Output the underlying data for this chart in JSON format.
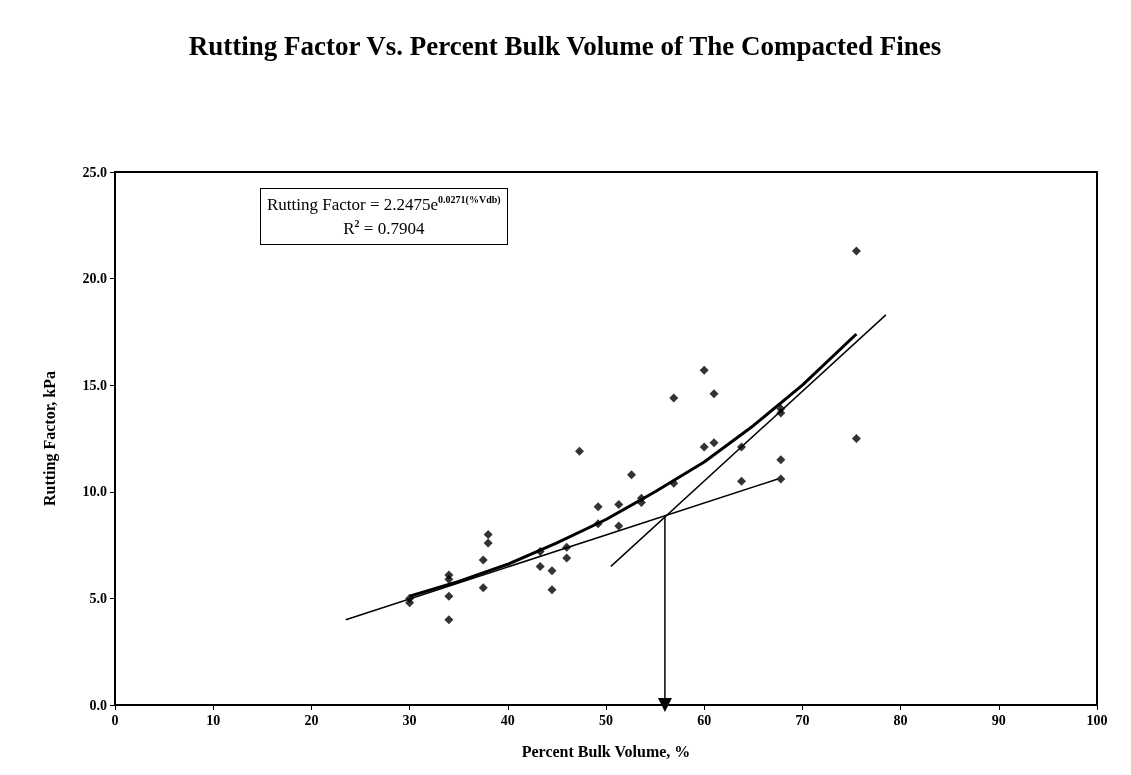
{
  "chart_data": {
    "type": "scatter",
    "title": "Rutting Factor Vs. Percent Bulk Volume of The Compacted Fines",
    "xlabel": "Percent Bulk Volume, %",
    "ylabel": "Rutting Factor, kPa",
    "annotations": [
      "Rutting Factor = 2.2475e$^{0.0271(%Vdb)}$",
      "R$^{2}$ = 0.7904"
    ],
    "xlim": [
      0,
      100
    ],
    "xticks": [
      0,
      10,
      20,
      30,
      40,
      50,
      60,
      70,
      80,
      90,
      100
    ],
    "ylim": [
      0,
      25
    ],
    "yticks": [
      {
        "value": 0,
        "label": "0.0"
      },
      {
        "value": 5,
        "label": "5.0"
      },
      {
        "value": 10,
        "label": "10.0"
      },
      {
        "value": 15,
        "label": "15.0"
      },
      {
        "value": 20,
        "label": "20.0"
      },
      {
        "value": 25,
        "label": "25.0"
      }
    ],
    "grid": false,
    "marker": "diamond",
    "series": [
      {
        "color": "#000000",
        "x": [
          30,
          30,
          34,
          34,
          34,
          34,
          37.5,
          37.5,
          38,
          38,
          43.3,
          43.3,
          44.5,
          44.5,
          46,
          46,
          47.3,
          49.2,
          49.2,
          51.3,
          51.3,
          52.6,
          53.6,
          53.6,
          56.9,
          56.9,
          60,
          60,
          61,
          61,
          63.8,
          63.8,
          67.8,
          67.8,
          67.8,
          67.8,
          75.5,
          75.5
        ],
        "values": [
          5.0,
          4.8,
          6.1,
          5.9,
          5.1,
          4.0,
          6.8,
          5.5,
          8.0,
          7.6,
          7.2,
          6.5,
          6.3,
          5.4,
          7.4,
          6.9,
          11.9,
          9.3,
          8.5,
          9.4,
          8.4,
          10.8,
          9.7,
          9.5,
          14.4,
          10.4,
          15.7,
          12.1,
          14.6,
          12.3,
          12.1,
          10.5,
          13.9,
          13.7,
          11.5,
          10.6,
          21.3,
          12.5
        ]
      },
      {
        "type": "line",
        "color": "#000000",
        "marker": "none",
        "x": [
          30,
          35,
          40,
          45,
          50,
          55,
          60,
          65,
          70,
          75.5
        ],
        "values": [
          5.1,
          5.8,
          6.6,
          7.6,
          8.7,
          10.0,
          11.4,
          13.1,
          15.0,
          17.4
        ]
      },
      {
        "type": "line",
        "color": "#000000",
        "marker": "none",
        "x": [
          23.5,
          67.5
        ],
        "values": [
          4.0,
          10.6
        ]
      },
      {
        "type": "line",
        "color": "#000000",
        "marker": "none",
        "x": [
          50.5,
          78.5
        ],
        "values": [
          6.5,
          18.3
        ]
      },
      {
        "type": "line",
        "color": "#000000",
        "marker": "triangle",
        "x": [
          56,
          56
        ],
        "values": [
          8.9,
          0
        ]
      }
    ]
  }
}
